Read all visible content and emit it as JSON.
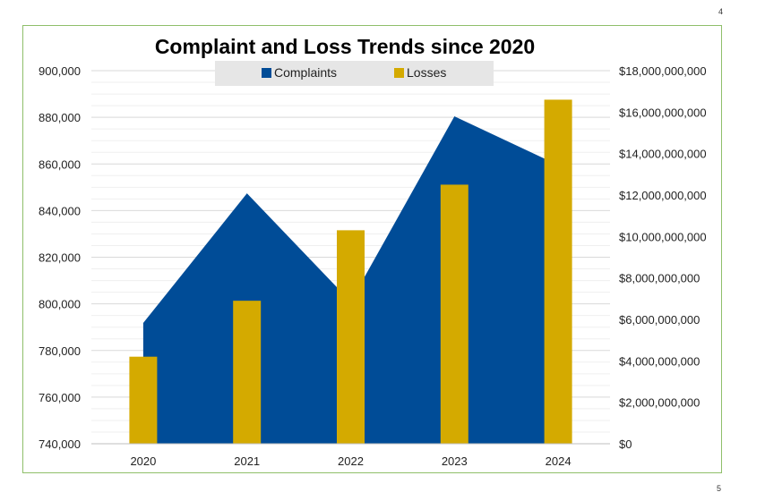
{
  "page": {
    "number_top": "4",
    "number_bottom": "5"
  },
  "chart_data": {
    "type": "area",
    "title": "Complaint and Loss Trends since 2020",
    "categories": [
      "2020",
      "2021",
      "2022",
      "2023",
      "2024"
    ],
    "series": [
      {
        "name": "Complaints",
        "type": "area",
        "axis": "left",
        "color": "#004c97",
        "values": [
          791790,
          847376,
          800944,
          880418,
          859532
        ]
      },
      {
        "name": "Losses",
        "type": "bar",
        "axis": "right",
        "color": "#d4aa00",
        "values": [
          4200000000,
          6900000000,
          10300000000,
          12500000000,
          16600000000
        ]
      }
    ],
    "y_left": {
      "ylim": [
        740000,
        900000
      ],
      "ticks": [
        "740,000",
        "760,000",
        "780,000",
        "800,000",
        "820,000",
        "840,000",
        "860,000",
        "880,000",
        "900,000"
      ]
    },
    "y_right": {
      "ylim": [
        0,
        18000000000
      ],
      "ticks": [
        "$0",
        "$2,000,000,000",
        "$4,000,000,000",
        "$6,000,000,000",
        "$8,000,000,000",
        "$10,000,000,000",
        "$12,000,000,000",
        "$14,000,000,000",
        "$16,000,000,000",
        "$18,000,000,000"
      ]
    },
    "xlabel": "",
    "ylabel": "",
    "grid": true,
    "legend": "top"
  }
}
